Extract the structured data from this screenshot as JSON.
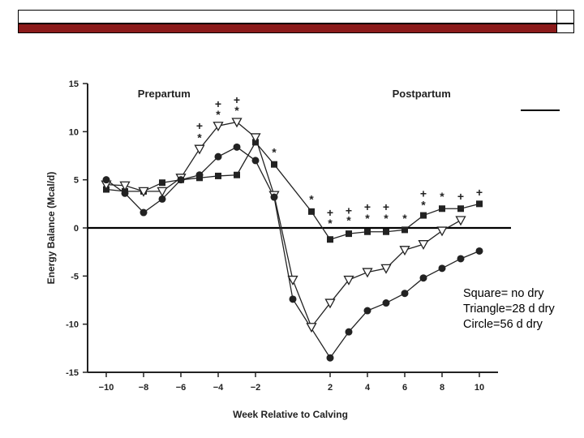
{
  "slide": {
    "legend": {
      "square": "Square= no dry",
      "triangle": "Triangle=28 d dry",
      "circle": "Circle=56 d dry"
    },
    "colors": {
      "accent_bar": "#8b1a1a",
      "ink": "#222222"
    }
  },
  "chart_data": {
    "type": "line",
    "title": "",
    "xlabel": "Week Relative to Calving",
    "ylabel": "Energy Balance (Mcal/d)",
    "xlim": [
      -11,
      11
    ],
    "ylim": [
      -15,
      15
    ],
    "xticks": [
      -10,
      -8,
      -6,
      -4,
      -2,
      2,
      4,
      6,
      8,
      10
    ],
    "yticks": [
      15,
      10,
      5,
      0,
      -5,
      -10,
      -15
    ],
    "period_labels": {
      "pre": "Prepartum",
      "post": "Postpartum"
    },
    "series": [
      {
        "name": "no dry",
        "marker": "square",
        "points": [
          [
            -10,
            4.0
          ],
          [
            -9,
            3.8
          ],
          [
            -8,
            3.8
          ],
          [
            -7,
            4.7
          ],
          [
            -6,
            5.0
          ],
          [
            -5,
            5.2
          ],
          [
            -4,
            5.4
          ],
          [
            -3,
            5.5
          ],
          [
            -2,
            8.9
          ],
          [
            -1,
            6.6
          ],
          [
            1,
            1.7
          ],
          [
            2,
            -1.2
          ],
          [
            3,
            -0.6
          ],
          [
            4,
            -0.4
          ],
          [
            5,
            -0.4
          ],
          [
            6,
            -0.2
          ],
          [
            7,
            1.3
          ],
          [
            8,
            2.0
          ],
          [
            9,
            2.0
          ],
          [
            10,
            2.5
          ]
        ]
      },
      {
        "name": "28 d dry",
        "marker": "triangle",
        "points": [
          [
            -10,
            4.5
          ],
          [
            -9,
            4.4
          ],
          [
            -8,
            3.8
          ],
          [
            -7,
            3.8
          ],
          [
            -6,
            5.2
          ],
          [
            -5,
            8.2
          ],
          [
            -4,
            10.6
          ],
          [
            -3,
            11.0
          ],
          [
            -2,
            9.4
          ],
          [
            -1,
            3.4
          ],
          [
            0,
            -5.4
          ],
          [
            1,
            -10.3
          ],
          [
            2,
            -7.8
          ],
          [
            3,
            -5.4
          ],
          [
            4,
            -4.6
          ],
          [
            5,
            -4.2
          ],
          [
            6,
            -2.3
          ],
          [
            7,
            -1.7
          ],
          [
            8,
            -0.3
          ],
          [
            9,
            0.8
          ]
        ]
      },
      {
        "name": "56 d dry",
        "marker": "circle",
        "points": [
          [
            -10,
            5.0
          ],
          [
            -9,
            3.6
          ],
          [
            -8,
            1.6
          ],
          [
            -7,
            3.0
          ],
          [
            -6,
            5.0
          ],
          [
            -5,
            5.5
          ],
          [
            -4,
            7.4
          ],
          [
            -3,
            8.4
          ],
          [
            -2,
            7.0
          ],
          [
            -1,
            3.2
          ],
          [
            0,
            -7.4
          ],
          [
            2,
            -13.5
          ],
          [
            3,
            -10.8
          ],
          [
            4,
            -8.6
          ],
          [
            5,
            -7.8
          ],
          [
            6,
            -6.8
          ],
          [
            7,
            -5.2
          ],
          [
            8,
            -4.2
          ],
          [
            9,
            -3.2
          ],
          [
            10,
            -2.4
          ]
        ]
      }
    ],
    "annotations": [
      {
        "text": "*",
        "x": -5,
        "y": 9.4
      },
      {
        "text": "+",
        "x": -5,
        "y": 10.6
      },
      {
        "text": "*",
        "x": -4,
        "y": 11.8
      },
      {
        "text": "+",
        "x": -4,
        "y": 12.9
      },
      {
        "text": "*",
        "x": -3,
        "y": 12.2
      },
      {
        "text": "+",
        "x": -3,
        "y": 13.3
      },
      {
        "text": "*",
        "x": -1,
        "y": 7.9
      },
      {
        "text": "*",
        "x": 1,
        "y": 3.0
      },
      {
        "text": "*",
        "x": 2,
        "y": 0.5
      },
      {
        "text": "+",
        "x": 2,
        "y": 1.6
      },
      {
        "text": "*",
        "x": 3,
        "y": 0.8
      },
      {
        "text": "+",
        "x": 3,
        "y": 1.8
      },
      {
        "text": "*",
        "x": 4,
        "y": 1.0
      },
      {
        "text": "+",
        "x": 4,
        "y": 2.2
      },
      {
        "text": "*",
        "x": 5,
        "y": 1.0
      },
      {
        "text": "+",
        "x": 5,
        "y": 2.2
      },
      {
        "text": "*",
        "x": 6,
        "y": 1.0
      },
      {
        "text": "*",
        "x": 7,
        "y": 2.4
      },
      {
        "text": "+",
        "x": 7,
        "y": 3.6
      },
      {
        "text": "*",
        "x": 8,
        "y": 3.3
      },
      {
        "text": "+",
        "x": 9,
        "y": 3.3
      },
      {
        "text": "+",
        "x": 10,
        "y": 3.7
      }
    ]
  }
}
